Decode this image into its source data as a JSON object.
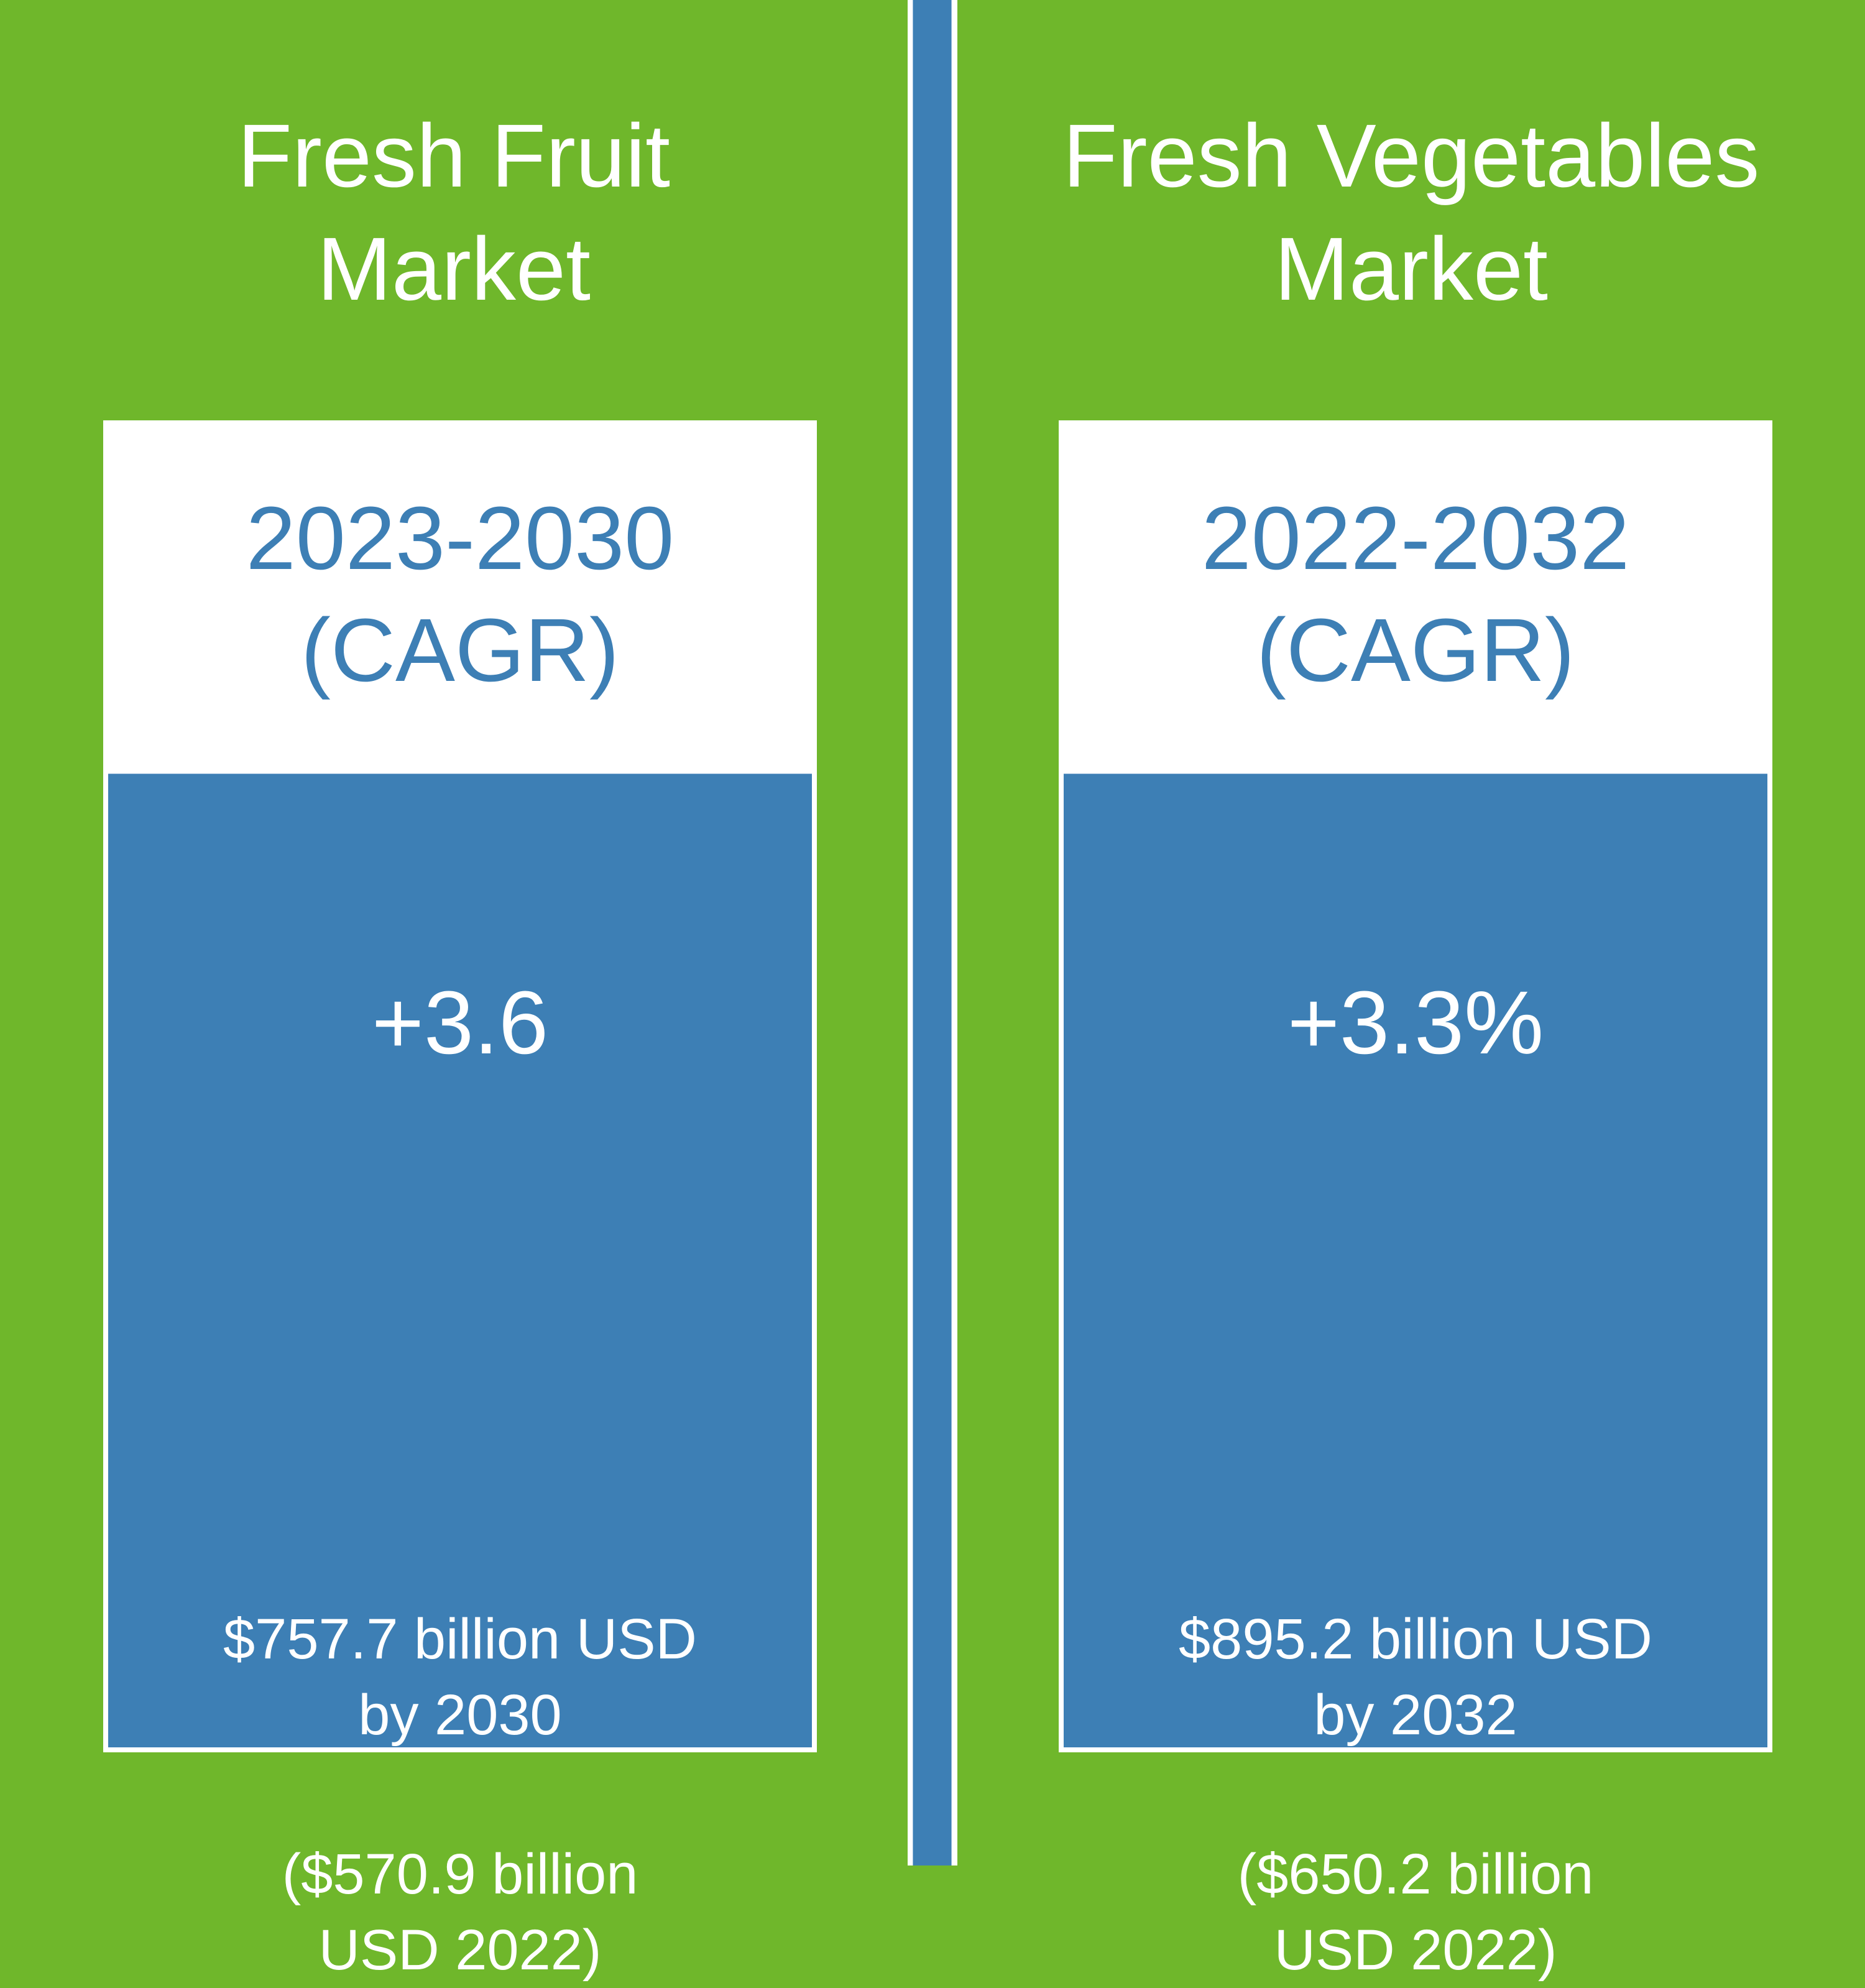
{
  "colors": {
    "background_green": "#6FB72B",
    "accent_blue": "#3D7FB5",
    "white": "#FFFFFF"
  },
  "panels": [
    {
      "title_line1": "Fresh Fruit",
      "title_line2": "Market",
      "period_line1": "2023-2030",
      "period_line2": "(CAGR)",
      "cagr": "+3.6",
      "forecast_line1": "$757.7 billion USD",
      "forecast_line2": "by 2030",
      "base_line1": "($570.9 billion",
      "base_line2": "USD 2022)"
    },
    {
      "title_line1": "Fresh Vegetables",
      "title_line2": "Market",
      "period_line1": "2022-2032",
      "period_line2": "(CAGR)",
      "cagr": "+3.3%",
      "forecast_line1": "$895.2 billion USD",
      "forecast_line2": "by 2032",
      "base_line1": "($650.2 billion",
      "base_line2": "USD 2022)"
    }
  ]
}
